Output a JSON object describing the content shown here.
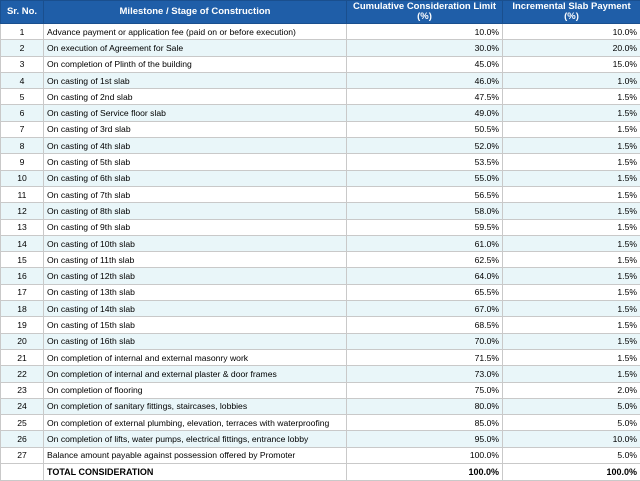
{
  "headers": {
    "sr": "Sr. No.",
    "milestone": "Milestone / Stage of Construction",
    "cumulative": "Cumulative Consideration Limit (%)",
    "incremental": "Incremental Slab Payment (%)"
  },
  "rows": [
    {
      "sr": "1",
      "milestone": "Advance payment or application fee (paid on or before execution)",
      "cumulative": "10.0%",
      "incremental": "10.0%"
    },
    {
      "sr": "2",
      "milestone": "On execution of Agreement for Sale",
      "cumulative": "30.0%",
      "incremental": "20.0%"
    },
    {
      "sr": "3",
      "milestone": "On completion of Plinth of the building",
      "cumulative": "45.0%",
      "incremental": "15.0%"
    },
    {
      "sr": "4",
      "milestone": "On casting of 1st slab",
      "cumulative": "46.0%",
      "incremental": "1.0%"
    },
    {
      "sr": "5",
      "milestone": "On casting of 2nd slab",
      "cumulative": "47.5%",
      "incremental": "1.5%"
    },
    {
      "sr": "6",
      "milestone": "On casting of Service floor slab",
      "cumulative": "49.0%",
      "incremental": "1.5%"
    },
    {
      "sr": "7",
      "milestone": "On casting of 3rd slab",
      "cumulative": "50.5%",
      "incremental": "1.5%"
    },
    {
      "sr": "8",
      "milestone": "On casting of 4th slab",
      "cumulative": "52.0%",
      "incremental": "1.5%"
    },
    {
      "sr": "9",
      "milestone": "On casting of 5th slab",
      "cumulative": "53.5%",
      "incremental": "1.5%"
    },
    {
      "sr": "10",
      "milestone": "On casting of 6th slab",
      "cumulative": "55.0%",
      "incremental": "1.5%"
    },
    {
      "sr": "11",
      "milestone": "On casting of 7th slab",
      "cumulative": "56.5%",
      "incremental": "1.5%"
    },
    {
      "sr": "12",
      "milestone": "On casting of 8th slab",
      "cumulative": "58.0%",
      "incremental": "1.5%"
    },
    {
      "sr": "13",
      "milestone": "On casting of 9th slab",
      "cumulative": "59.5%",
      "incremental": "1.5%"
    },
    {
      "sr": "14",
      "milestone": "On casting of 10th slab",
      "cumulative": "61.0%",
      "incremental": "1.5%"
    },
    {
      "sr": "15",
      "milestone": "On casting of 11th slab",
      "cumulative": "62.5%",
      "incremental": "1.5%"
    },
    {
      "sr": "16",
      "milestone": "On casting of 12th slab",
      "cumulative": "64.0%",
      "incremental": "1.5%"
    },
    {
      "sr": "17",
      "milestone": "On casting of 13th slab",
      "cumulative": "65.5%",
      "incremental": "1.5%"
    },
    {
      "sr": "18",
      "milestone": "On casting of 14th slab",
      "cumulative": "67.0%",
      "incremental": "1.5%"
    },
    {
      "sr": "19",
      "milestone": "On casting of 15th slab",
      "cumulative": "68.5%",
      "incremental": "1.5%"
    },
    {
      "sr": "20",
      "milestone": "On casting of 16th slab",
      "cumulative": "70.0%",
      "incremental": "1.5%"
    },
    {
      "sr": "21",
      "milestone": "On completion of internal and external masonry work",
      "cumulative": "71.5%",
      "incremental": "1.5%"
    },
    {
      "sr": "22",
      "milestone": "On completion of internal and external plaster & door frames",
      "cumulative": "73.0%",
      "incremental": "1.5%"
    },
    {
      "sr": "23",
      "milestone": "On completion of flooring",
      "cumulative": "75.0%",
      "incremental": "2.0%"
    },
    {
      "sr": "24",
      "milestone": "On completion of sanitary fittings, staircases, lobbies",
      "cumulative": "80.0%",
      "incremental": "5.0%"
    },
    {
      "sr": "25",
      "milestone": "On completion of external plumbing, elevation, terraces with waterproofing",
      "cumulative": "85.0%",
      "incremental": "5.0%"
    },
    {
      "sr": "26",
      "milestone": "On completion of lifts, water pumps, electrical fittings, entrance lobby",
      "cumulative": "95.0%",
      "incremental": "10.0%"
    },
    {
      "sr": "27",
      "milestone": "Balance amount payable against possession offered by Promoter",
      "cumulative": "100.0%",
      "incremental": "5.0%"
    }
  ],
  "total": {
    "label": "TOTAL CONSIDERATION",
    "cumulative": "100.0%",
    "incremental": "100.0%"
  }
}
